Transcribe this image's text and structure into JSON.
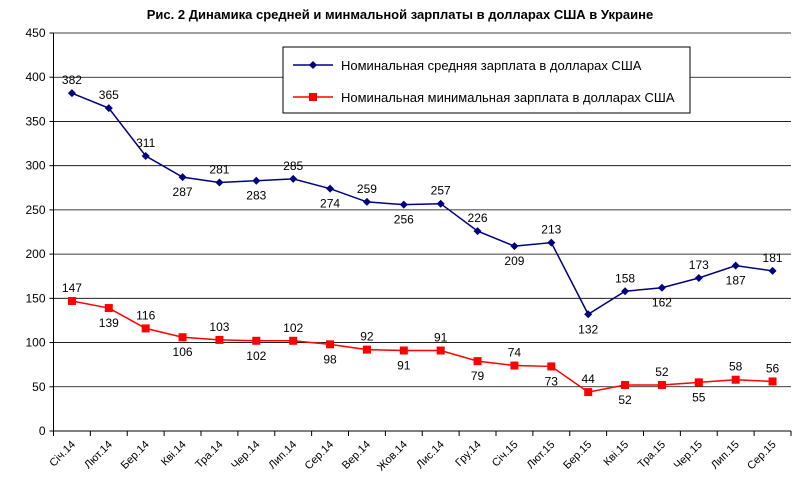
{
  "chart_data": {
    "type": "line",
    "title": "Рис. 2 Динамика средней и минмальной зарплаты в долларах США в Украине",
    "xlabel": "",
    "ylabel": "",
    "ylim": [
      0,
      450
    ],
    "yticks": [
      0,
      50,
      100,
      150,
      200,
      250,
      300,
      350,
      400,
      450
    ],
    "grid": true,
    "legend_position": "top-center",
    "categories": [
      "Січ.14",
      "Лют.14",
      "Бер.14",
      "Кві.14",
      "Тра.14",
      "Чер.14",
      "Лип.14",
      "Сер.14",
      "Вер.14",
      "Жов.14",
      "Лис.14",
      "Гру.14",
      "Січ.15",
      "Лют.15",
      "Бер.15",
      "Кві.15",
      "Тра.15",
      "Чер.15",
      "Лип.15",
      "Сер.15"
    ],
    "series": [
      {
        "name": "Номинальная средняя зарплата в долларах США",
        "color": "#000080",
        "marker": "diamond",
        "values": [
          382,
          365,
          311,
          287,
          281,
          283,
          285,
          274,
          259,
          256,
          257,
          226,
          209,
          213,
          132,
          158,
          162,
          173,
          187,
          181
        ],
        "label_side": [
          "above",
          "above",
          "above",
          "below",
          "above",
          "below",
          "above",
          "below",
          "above",
          "below",
          "above",
          "above",
          "below",
          "above",
          "below",
          "above",
          "below",
          "above",
          "below",
          "above"
        ]
      },
      {
        "name": "Номинальная минимальная зарплата в долларах США",
        "color": "#ff0000",
        "marker": "square",
        "values": [
          147,
          139,
          116,
          106,
          103,
          102,
          102,
          98,
          92,
          91,
          91,
          79,
          74,
          73,
          44,
          52,
          52,
          55,
          58,
          56
        ],
        "label_side": [
          "above",
          "below",
          "above",
          "below",
          "above",
          "below",
          "above",
          "below",
          "above",
          "below",
          "above",
          "below",
          "above",
          "below",
          "above",
          "below",
          "above",
          "below",
          "above",
          "above"
        ]
      }
    ]
  }
}
